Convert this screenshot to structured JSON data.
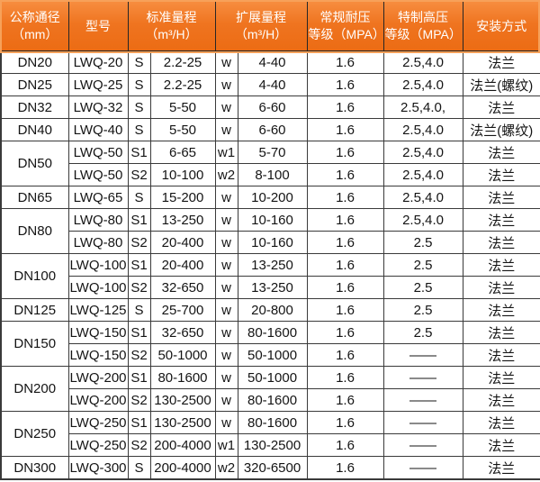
{
  "header": {
    "cols": [
      {
        "line1": "公称通径",
        "line2": "（mm）"
      },
      {
        "line1": "型号",
        "line2": ""
      },
      {
        "line1": "标准量程",
        "line2": "（m³/H）"
      },
      {
        "line1": "扩展量程",
        "line2": "（m³/H）"
      },
      {
        "line1": "常规耐压",
        "line2": "等级（MPA）"
      },
      {
        "line1": "特制高压",
        "line2": "等级（MPA）"
      },
      {
        "line1": "安装方式",
        "line2": ""
      }
    ]
  },
  "rows": [
    {
      "dn": "DN20",
      "dn_rowspan": 1,
      "model": "LWQ-20",
      "std_code": "S",
      "std_range": "2.2-25",
      "ext_code": "w",
      "ext_range": "4-40",
      "regular_mpa": "1.6",
      "high_mpa": "2.5,4.0",
      "install": "法兰"
    },
    {
      "dn": "DN25",
      "dn_rowspan": 1,
      "model": "LWQ-25",
      "std_code": "S",
      "std_range": "2.2-25",
      "ext_code": "w",
      "ext_range": "4-40",
      "regular_mpa": "1.6",
      "high_mpa": "2.5,4.0",
      "install": "法兰(螺纹)"
    },
    {
      "dn": "DN32",
      "dn_rowspan": 1,
      "model": "LWQ-32",
      "std_code": "S",
      "std_range": "5-50",
      "ext_code": "w",
      "ext_range": "6-60",
      "regular_mpa": "1.6",
      "high_mpa": "2.5,4.0,",
      "install": "法兰"
    },
    {
      "dn": "DN40",
      "dn_rowspan": 1,
      "model": "LWQ-40",
      "std_code": "S",
      "std_range": "5-50",
      "ext_code": "w",
      "ext_range": "6-60",
      "regular_mpa": "1.6",
      "high_mpa": "2.5,4.0",
      "install": "法兰(螺纹)"
    },
    {
      "dn": "DN50",
      "dn_rowspan": 2,
      "model": "LWQ-50",
      "std_code": "S1",
      "std_range": "6-65",
      "ext_code": "w1",
      "ext_range": "5-70",
      "regular_mpa": "1.6",
      "high_mpa": "2.5,4.0",
      "install": "法兰"
    },
    {
      "dn": null,
      "dn_rowspan": 0,
      "model": "LWQ-50",
      "std_code": "S2",
      "std_range": "10-100",
      "ext_code": "w2",
      "ext_range": "8-100",
      "regular_mpa": "1.6",
      "high_mpa": "2.5,4.0",
      "install": "法兰"
    },
    {
      "dn": "DN65",
      "dn_rowspan": 1,
      "model": "LWQ-65",
      "std_code": "S",
      "std_range": "15-200",
      "ext_code": "w",
      "ext_range": "10-200",
      "regular_mpa": "1.6",
      "high_mpa": "2.5,4.0",
      "install": "法兰"
    },
    {
      "dn": "DN80",
      "dn_rowspan": 2,
      "model": "LWQ-80",
      "std_code": "S1",
      "std_range": "13-250",
      "ext_code": "w",
      "ext_range": "10-160",
      "regular_mpa": "1.6",
      "high_mpa": "2.5,4.0",
      "install": "法兰"
    },
    {
      "dn": null,
      "dn_rowspan": 0,
      "model": "LWQ-80",
      "std_code": "S2",
      "std_range": "20-400",
      "ext_code": "w",
      "ext_range": "10-160",
      "regular_mpa": "1.6",
      "high_mpa": "2.5",
      "install": "法兰"
    },
    {
      "dn": "DN100",
      "dn_rowspan": 2,
      "model": "LWQ-100",
      "std_code": "S1",
      "std_range": "20-400",
      "ext_code": "w",
      "ext_range": "13-250",
      "regular_mpa": "1.6",
      "high_mpa": "2.5",
      "install": "法兰"
    },
    {
      "dn": null,
      "dn_rowspan": 0,
      "model": "LWQ-100",
      "std_code": "S2",
      "std_range": "32-650",
      "ext_code": "w",
      "ext_range": "13-250",
      "regular_mpa": "1.6",
      "high_mpa": "2.5",
      "install": "法兰"
    },
    {
      "dn": "DN125",
      "dn_rowspan": 1,
      "model": "LWQ-125",
      "std_code": "S",
      "std_range": "25-700",
      "ext_code": "w",
      "ext_range": "20-800",
      "regular_mpa": "1.6",
      "high_mpa": "2.5",
      "install": "法兰"
    },
    {
      "dn": "DN150",
      "dn_rowspan": 2,
      "model": "LWQ-150",
      "std_code": "S1",
      "std_range": "32-650",
      "ext_code": "w",
      "ext_range": "80-1600",
      "regular_mpa": "1.6",
      "high_mpa": "2.5",
      "install": "法兰"
    },
    {
      "dn": null,
      "dn_rowspan": 0,
      "model": "LWQ-150",
      "std_code": "S2",
      "std_range": "50-1000",
      "ext_code": "w",
      "ext_range": "50-1000",
      "regular_mpa": "1.6",
      "high_mpa": "——",
      "install": "法兰"
    },
    {
      "dn": "DN200",
      "dn_rowspan": 2,
      "model": "LWQ-200",
      "std_code": "S1",
      "std_range": "80-1600",
      "ext_code": "w",
      "ext_range": "50-1000",
      "regular_mpa": "1.6",
      "high_mpa": "——",
      "install": "法兰"
    },
    {
      "dn": null,
      "dn_rowspan": 0,
      "model": "LWQ-200",
      "std_code": "S2",
      "std_range": "130-2500",
      "ext_code": "w",
      "ext_range": "80-1600",
      "regular_mpa": "1.6",
      "high_mpa": "——",
      "install": "法兰"
    },
    {
      "dn": "DN250",
      "dn_rowspan": 2,
      "model": "LWQ-250",
      "std_code": "S1",
      "std_range": "130-2500",
      "ext_code": "w",
      "ext_range": "80-1600",
      "regular_mpa": "1.6",
      "high_mpa": "——",
      "install": "法兰"
    },
    {
      "dn": null,
      "dn_rowspan": 0,
      "model": "LWQ-250",
      "std_code": "S2",
      "std_range": "200-4000",
      "ext_code": "w1",
      "ext_range": "130-2500",
      "regular_mpa": "1.6",
      "high_mpa": "——",
      "install": "法兰"
    },
    {
      "dn": "DN300",
      "dn_rowspan": 1,
      "model": "LWQ-300",
      "std_code": "S",
      "std_range": "200-4000",
      "ext_code": "w2",
      "ext_range": "320-6500",
      "regular_mpa": "1.6",
      "high_mpa": "——",
      "install": "法兰"
    }
  ],
  "colors": {
    "header_orange": "#ef7420",
    "header_orange_light": "#f78d3f",
    "header_frame_orange": "#f7a159",
    "border_dark": "#3a3a3a",
    "header_text": "#ffffff",
    "body_text": "#141414",
    "cell_background": "#ffffff"
  }
}
